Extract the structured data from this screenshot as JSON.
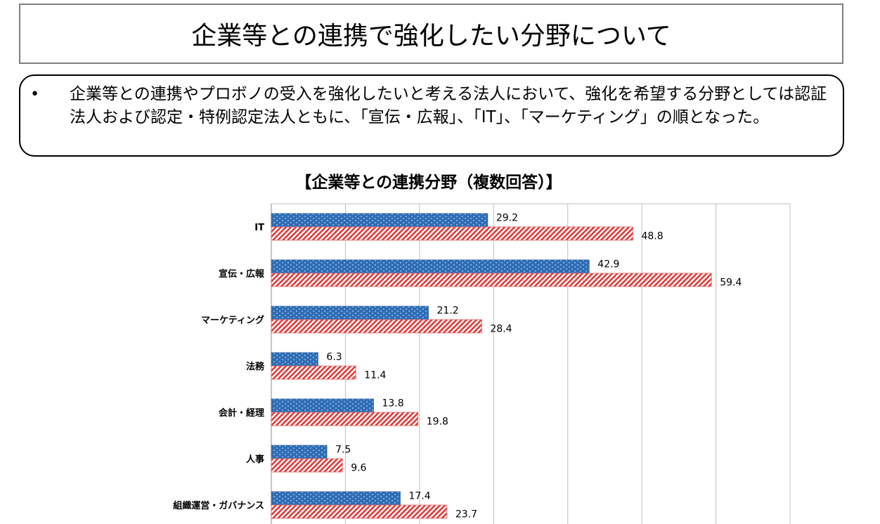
{
  "title": "企業等との連携で強化したい分野について",
  "bullet": {
    "marker": "•",
    "text": "企業等との連携やプロボノの受入を強化したいと考える法人において、強化を希望する分野としては認証法人および認定・特例認定法人ともに、「宣伝・広報」、「IT」、「マーケティング」の順となった。"
  },
  "chart_data": {
    "type": "bar",
    "orientation": "horizontal",
    "title": "【企業等との連携分野（複数回答）】",
    "categories": [
      "IT",
      "宣伝・広報",
      "マーケティング",
      "法務",
      "会計・経理",
      "人事",
      "組織運営・ガバナンス"
    ],
    "series": [
      {
        "values": [
          29.2,
          42.9,
          21.2,
          6.3,
          13.8,
          7.5,
          17.4
        ],
        "color": "#2e6db5",
        "pattern": "dots"
      },
      {
        "values": [
          48.8,
          59.4,
          28.4,
          11.4,
          19.8,
          9.6,
          23.7
        ],
        "color": "#e03a3a",
        "pattern": "diagonal-stripes"
      }
    ],
    "xlim": [
      0,
      70
    ],
    "grid_step": 10,
    "grid": true,
    "data_labels": true,
    "legend": "none"
  }
}
